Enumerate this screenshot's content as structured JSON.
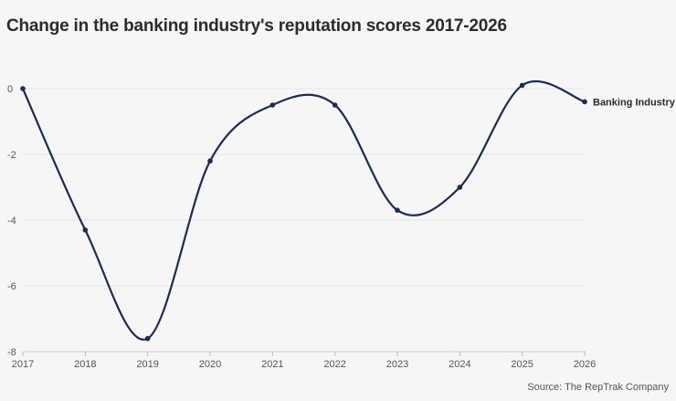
{
  "chart_data": {
    "type": "line",
    "title": "Change in the banking industry's reputation scores 2017-2026",
    "xlabel": "",
    "ylabel": "",
    "x": [
      "2017",
      "2018",
      "2019",
      "2020",
      "2021",
      "2022",
      "2023",
      "2024",
      "2025",
      "2026"
    ],
    "y_ticks": [
      "0",
      "-2",
      "-4",
      "-6",
      "-8"
    ],
    "ylim": [
      -8,
      0
    ],
    "grid": true,
    "series": [
      {
        "name": "Banking Industry",
        "values": [
          0,
          -4.3,
          -7.6,
          -2.2,
          -0.5,
          -0.5,
          -3.7,
          -3.0,
          0.1,
          -0.4
        ],
        "color": "#1c2b5a"
      }
    ],
    "legend": "end-of-line label",
    "source": "Source: The RepTrak Company"
  }
}
